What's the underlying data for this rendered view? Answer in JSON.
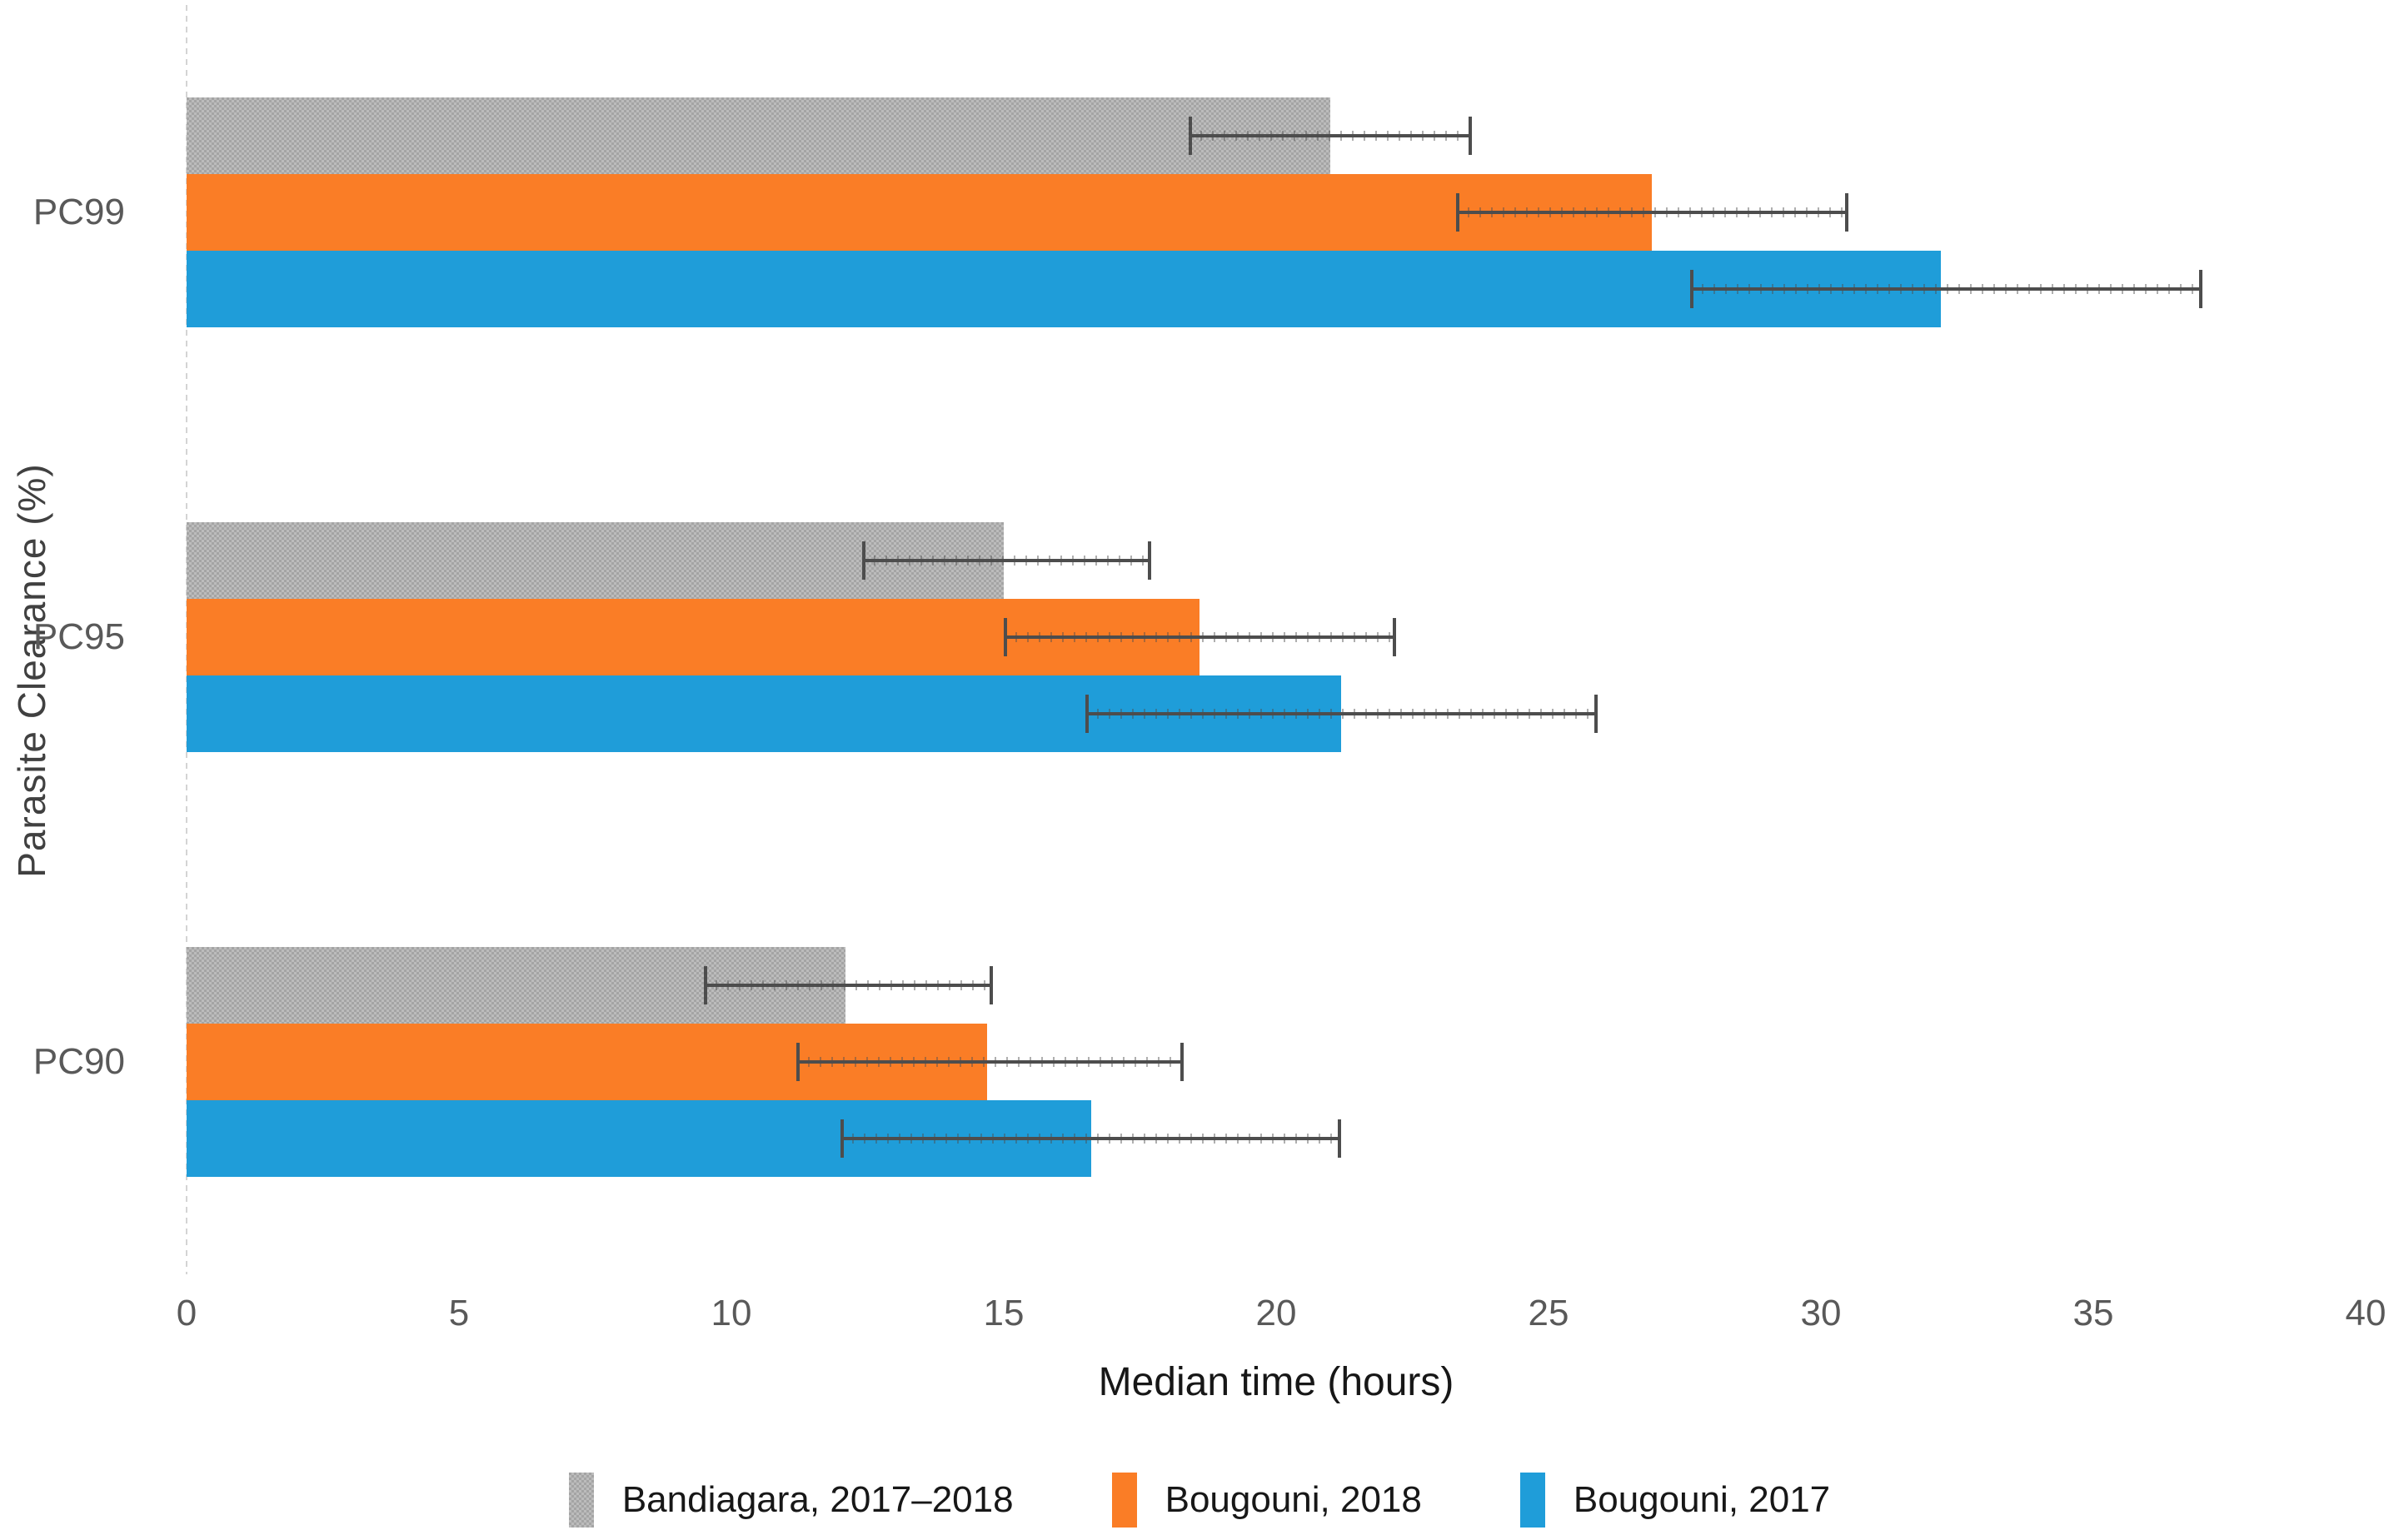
{
  "colors": {
    "background": "#ffffff",
    "error_bar": "#4d4d4d",
    "axis_line": "#d4d4d4",
    "tick_text": "#595959",
    "title_text": "#171717"
  },
  "chart_data": {
    "type": "bar",
    "orientation": "horizontal",
    "xlabel": "Median time (hours)",
    "ylabel": "Parasite Clearance (%)",
    "categories": [
      "PC99",
      "PC95",
      "PC90"
    ],
    "xlim": [
      0,
      40
    ],
    "x_ticks": [
      0,
      5,
      10,
      15,
      20,
      25,
      30,
      35,
      40
    ],
    "grid": false,
    "legend_position": "bottom",
    "series": [
      {
        "name": "Bandiagara, 2017–2018",
        "color": "#b0b0b0",
        "pattern": "checker",
        "values": [
          21.0,
          15.0,
          12.1
        ],
        "ci_low": [
          18.4,
          12.4,
          9.5
        ],
        "ci_high": [
          23.6,
          17.7,
          14.8
        ]
      },
      {
        "name": "Bougouni, 2018",
        "color": "#fa7d26",
        "pattern": "solid",
        "values": [
          26.9,
          18.6,
          14.7
        ],
        "ci_low": [
          23.3,
          15.0,
          11.2
        ],
        "ci_high": [
          30.5,
          22.2,
          18.3
        ]
      },
      {
        "name": "Bougouni, 2017",
        "color": "#1f9dd9",
        "pattern": "solid",
        "values": [
          32.2,
          21.2,
          16.6
        ],
        "ci_low": [
          27.6,
          16.5,
          12.0
        ],
        "ci_high": [
          37.0,
          25.9,
          21.2
        ]
      }
    ]
  }
}
